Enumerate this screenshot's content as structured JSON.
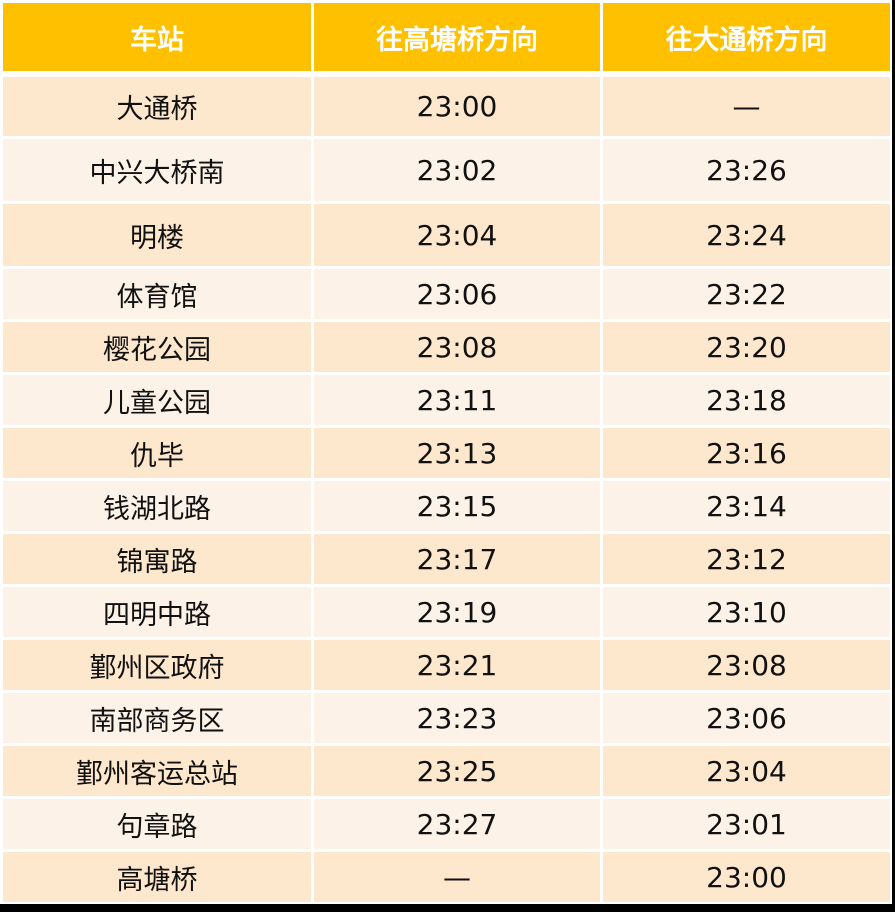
{
  "colors": {
    "header_bg": "#FFC000",
    "header_text": "#FFFFFF",
    "row_odd_bg": "#FDE7CD",
    "row_even_bg": "#FDF2E7",
    "text": "#111111",
    "grid_line": "#FFFFFF"
  },
  "table": {
    "headers": [
      "车站",
      "往高塘桥方向",
      "往大通桥方向"
    ],
    "rows": [
      {
        "station": "大通桥",
        "to_gaotangqiao": "23:00",
        "to_datongqiao": "—"
      },
      {
        "station": "中兴大桥南",
        "to_gaotangqiao": "23:02",
        "to_datongqiao": "23:26"
      },
      {
        "station": "明楼",
        "to_gaotangqiao": "23:04",
        "to_datongqiao": "23:24"
      },
      {
        "station": "体育馆",
        "to_gaotangqiao": "23:06",
        "to_datongqiao": "23:22"
      },
      {
        "station": "樱花公园",
        "to_gaotangqiao": "23:08",
        "to_datongqiao": "23:20"
      },
      {
        "station": "儿童公园",
        "to_gaotangqiao": "23:11",
        "to_datongqiao": "23:18"
      },
      {
        "station": "仇毕",
        "to_gaotangqiao": "23:13",
        "to_datongqiao": "23:16"
      },
      {
        "station": "钱湖北路",
        "to_gaotangqiao": "23:15",
        "to_datongqiao": "23:14"
      },
      {
        "station": "锦寓路",
        "to_gaotangqiao": "23:17",
        "to_datongqiao": "23:12"
      },
      {
        "station": "四明中路",
        "to_gaotangqiao": "23:19",
        "to_datongqiao": "23:10"
      },
      {
        "station": "鄞州区政府",
        "to_gaotangqiao": "23:21",
        "to_datongqiao": "23:08"
      },
      {
        "station": "南部商务区",
        "to_gaotangqiao": "23:23",
        "to_datongqiao": "23:06"
      },
      {
        "station": "鄞州客运总站",
        "to_gaotangqiao": "23:25",
        "to_datongqiao": "23:04"
      },
      {
        "station": "句章路",
        "to_gaotangqiao": "23:27",
        "to_datongqiao": "23:01"
      },
      {
        "station": "高塘桥",
        "to_gaotangqiao": "—",
        "to_datongqiao": "23:00"
      }
    ]
  }
}
